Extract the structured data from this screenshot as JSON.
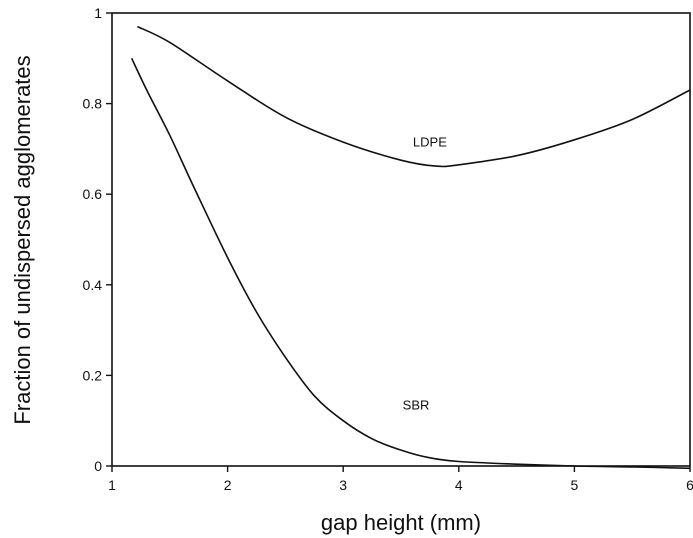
{
  "chart_data": {
    "type": "line",
    "title": "",
    "xlabel": "gap height (mm)",
    "ylabel": "Fraction of undispersed agglomerates",
    "xlim": [
      1,
      6
    ],
    "ylim": [
      0,
      1
    ],
    "x_ticks": [
      1,
      2,
      3,
      4,
      5,
      6
    ],
    "y_ticks": [
      0,
      0.2,
      0.4,
      0.6,
      0.8,
      1
    ],
    "x_tick_labels": [
      "1",
      "2",
      "3",
      "4",
      "5",
      "6"
    ],
    "y_tick_labels": [
      "0",
      "0.2",
      "0.4",
      "0.6",
      "0.8",
      "1"
    ],
    "grid": false,
    "series": [
      {
        "name": "LDPE",
        "x": [
          1.22,
          1.5,
          2.0,
          2.5,
          3.0,
          3.5,
          3.8,
          4.0,
          4.5,
          5.0,
          5.5,
          6.0
        ],
        "values": [
          0.97,
          0.935,
          0.85,
          0.77,
          0.715,
          0.675,
          0.662,
          0.665,
          0.685,
          0.72,
          0.765,
          0.83
        ]
      },
      {
        "name": "SBR",
        "x": [
          1.17,
          1.3,
          1.5,
          1.7,
          2.0,
          2.25,
          2.5,
          2.75,
          3.0,
          3.25,
          3.5,
          3.75,
          4.0,
          4.5,
          5.0,
          5.5,
          6.0
        ],
        "values": [
          0.9,
          0.83,
          0.73,
          0.62,
          0.46,
          0.34,
          0.24,
          0.155,
          0.1,
          0.06,
          0.035,
          0.018,
          0.01,
          0.004,
          0.0,
          -0.002,
          -0.005
        ]
      }
    ],
    "annotations": [
      {
        "text": "LDPE",
        "x": 3.75,
        "y": 0.705
      },
      {
        "text": "SBR",
        "x": 3.63,
        "y": 0.125
      }
    ]
  }
}
